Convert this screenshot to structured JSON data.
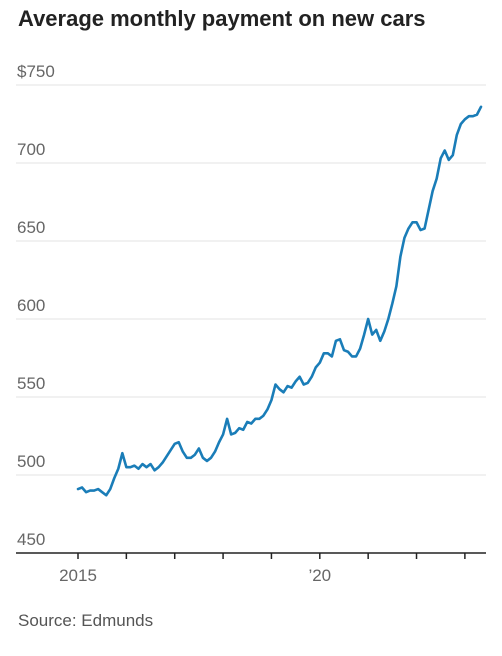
{
  "title": "Average monthly payment on new cars",
  "source": "Source: Edmunds",
  "colors": {
    "line": "#1a7db8",
    "grid": "#e3e3e3",
    "axis": "#222222",
    "label": "#666666"
  },
  "chart_data": {
    "type": "line",
    "title": "Average monthly payment on new cars",
    "xlabel": "",
    "ylabel": "",
    "ylim": [
      450,
      750
    ],
    "xlim": [
      "2015-01",
      "2023-05"
    ],
    "grid": true,
    "y_ticks": [
      {
        "value": 750,
        "label": "$750"
      },
      {
        "value": 700,
        "label": "700"
      },
      {
        "value": 650,
        "label": "650"
      },
      {
        "value": 600,
        "label": "600"
      },
      {
        "value": 550,
        "label": "550"
      },
      {
        "value": 500,
        "label": "500"
      },
      {
        "value": 450,
        "label": "450"
      }
    ],
    "x_ticks": [
      {
        "value": "2015-01",
        "label": "2015"
      },
      {
        "value": "2016-01",
        "label": ""
      },
      {
        "value": "2017-01",
        "label": ""
      },
      {
        "value": "2018-01",
        "label": ""
      },
      {
        "value": "2019-01",
        "label": ""
      },
      {
        "value": "2020-01",
        "label": "’20"
      },
      {
        "value": "2021-01",
        "label": ""
      },
      {
        "value": "2022-01",
        "label": ""
      },
      {
        "value": "2023-01",
        "label": ""
      }
    ],
    "series": [
      {
        "x": [
          "2015-01",
          "2015-02",
          "2015-03",
          "2015-04",
          "2015-05",
          "2015-06",
          "2015-07",
          "2015-08",
          "2015-09",
          "2015-10",
          "2015-11",
          "2015-12",
          "2016-01",
          "2016-02",
          "2016-03",
          "2016-04",
          "2016-05",
          "2016-06",
          "2016-07",
          "2016-08",
          "2016-09",
          "2016-10",
          "2016-11",
          "2016-12",
          "2017-01",
          "2017-02",
          "2017-03",
          "2017-04",
          "2017-05",
          "2017-06",
          "2017-07",
          "2017-08",
          "2017-09",
          "2017-10",
          "2017-11",
          "2017-12",
          "2018-01",
          "2018-02",
          "2018-03",
          "2018-04",
          "2018-05",
          "2018-06",
          "2018-07",
          "2018-08",
          "2018-09",
          "2018-10",
          "2018-11",
          "2018-12",
          "2019-01",
          "2019-02",
          "2019-03",
          "2019-04",
          "2019-05",
          "2019-06",
          "2019-07",
          "2019-08",
          "2019-09",
          "2019-10",
          "2019-11",
          "2019-12",
          "2020-01",
          "2020-02",
          "2020-03",
          "2020-04",
          "2020-05",
          "2020-06",
          "2020-07",
          "2020-08",
          "2020-09",
          "2020-10",
          "2020-11",
          "2020-12",
          "2021-01",
          "2021-02",
          "2021-03",
          "2021-04",
          "2021-05",
          "2021-06",
          "2021-07",
          "2021-08",
          "2021-09",
          "2021-10",
          "2021-11",
          "2021-12",
          "2022-01",
          "2022-02",
          "2022-03",
          "2022-04",
          "2022-05",
          "2022-06",
          "2022-07",
          "2022-08",
          "2022-09",
          "2022-10",
          "2022-11",
          "2022-12",
          "2023-01",
          "2023-02",
          "2023-03",
          "2023-04",
          "2023-05"
        ],
        "values": [
          491,
          492,
          489,
          490,
          490,
          491,
          489,
          487,
          491,
          498,
          504,
          514,
          505,
          505,
          506,
          504,
          507,
          505,
          507,
          503,
          505,
          508,
          512,
          516,
          520,
          521,
          515,
          511,
          511,
          513,
          517,
          511,
          509,
          511,
          515,
          521,
          526,
          536,
          526,
          527,
          530,
          529,
          534,
          533,
          536,
          536,
          538,
          542,
          548,
          558,
          555,
          553,
          557,
          556,
          560,
          563,
          558,
          559,
          563,
          569,
          572,
          578,
          578,
          576,
          586,
          587,
          580,
          579,
          576,
          576,
          581,
          590,
          600,
          590,
          593,
          586,
          592,
          600,
          610,
          621,
          640,
          652,
          658,
          662,
          662,
          657,
          658,
          670,
          682,
          690,
          703,
          708,
          702,
          705,
          718,
          725,
          728,
          730,
          730,
          731,
          736
        ]
      }
    ]
  }
}
